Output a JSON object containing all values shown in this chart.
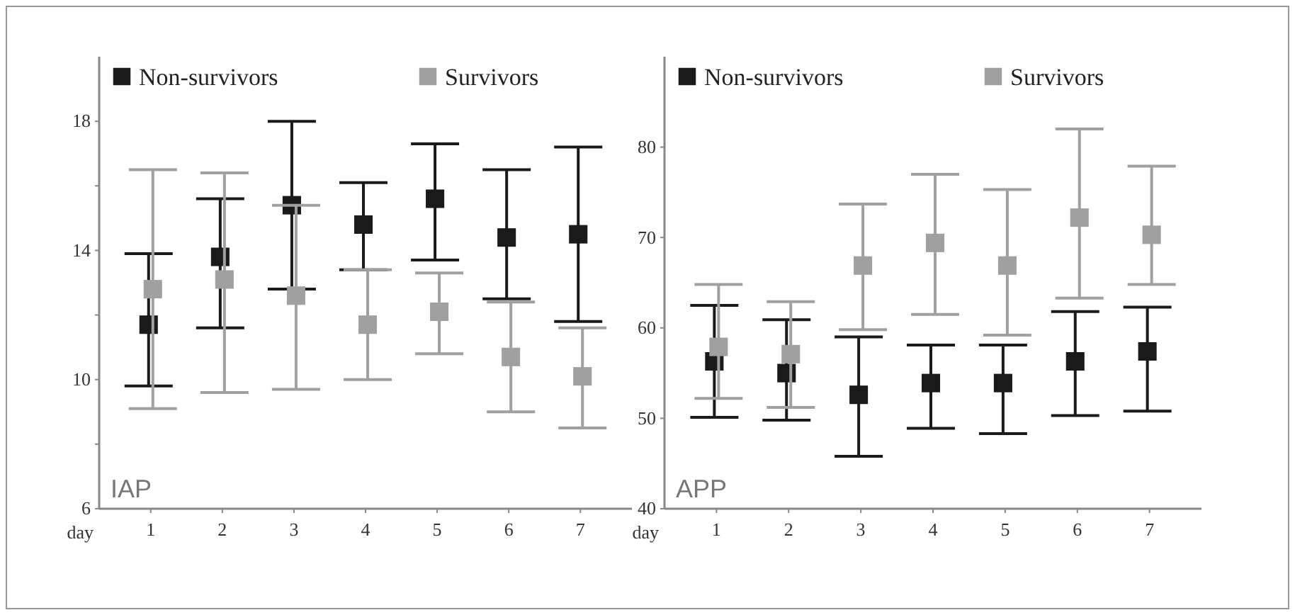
{
  "chart_data": [
    {
      "type": "scatter",
      "title": "IAP",
      "xlabel": "day",
      "categories": [
        "1",
        "2",
        "3",
        "4",
        "5",
        "6",
        "7"
      ],
      "ylim": [
        6,
        20
      ],
      "yticks": [
        6,
        {
          "value": 8,
          "label": null
        },
        10,
        {
          "value": 12,
          "label": null
        },
        14,
        {
          "value": 16,
          "label": null
        },
        18
      ],
      "marker": "square",
      "legend": "top",
      "grid": false,
      "series": [
        {
          "name": "Non-survivors",
          "color": "#1a1a1a",
          "values": [
            11.7,
            13.8,
            15.4,
            14.8,
            15.6,
            14.4,
            14.5
          ],
          "errors": [
            [
              9.8,
              13.9
            ],
            [
              11.6,
              15.6
            ],
            [
              12.8,
              18.0
            ],
            [
              13.4,
              16.1
            ],
            [
              13.7,
              17.3
            ],
            [
              12.5,
              16.5
            ],
            [
              11.8,
              17.2
            ]
          ]
        },
        {
          "name": "Survivors",
          "color": "#a0a0a0",
          "values": [
            12.8,
            13.1,
            12.6,
            11.7,
            12.1,
            10.7,
            10.1
          ],
          "errors": [
            [
              9.1,
              16.5
            ],
            [
              9.6,
              16.4
            ],
            [
              9.7,
              15.4
            ],
            [
              10.0,
              13.4
            ],
            [
              10.8,
              13.3
            ],
            [
              9.0,
              12.4
            ],
            [
              8.5,
              11.6
            ]
          ]
        }
      ]
    },
    {
      "type": "scatter",
      "title": "APP",
      "xlabel": "day",
      "categories": [
        "1",
        "2",
        "3",
        "4",
        "5",
        "6",
        "7"
      ],
      "ylim": [
        40,
        90
      ],
      "yticks": [
        40,
        50,
        60,
        70,
        80
      ],
      "marker": "square",
      "legend": "top",
      "grid": false,
      "series": [
        {
          "name": "Non-survivors",
          "color": "#1a1a1a",
          "values": [
            56.3,
            55.0,
            52.6,
            53.9,
            53.9,
            56.3,
            57.4
          ],
          "errors": [
            [
              50.1,
              62.5
            ],
            [
              49.8,
              60.9
            ],
            [
              45.8,
              59.0
            ],
            [
              48.9,
              58.1
            ],
            [
              48.3,
              58.1
            ],
            [
              50.3,
              61.8
            ],
            [
              50.8,
              62.3
            ]
          ]
        },
        {
          "name": "Survivors",
          "color": "#a0a0a0",
          "values": [
            57.9,
            57.1,
            66.9,
            69.4,
            66.9,
            72.2,
            70.3
          ],
          "errors": [
            [
              52.2,
              64.8
            ],
            [
              51.2,
              62.9
            ],
            [
              59.8,
              73.7
            ],
            [
              61.5,
              77.0
            ],
            [
              59.2,
              75.3
            ],
            [
              63.3,
              82.0
            ],
            [
              64.8,
              77.9
            ]
          ]
        }
      ]
    }
  ]
}
